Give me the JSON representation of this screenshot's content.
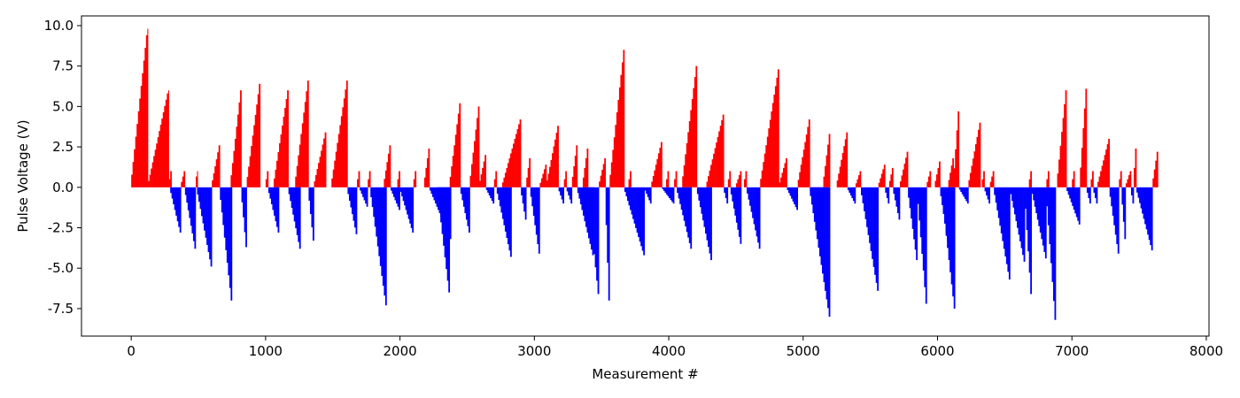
{
  "chart_data": {
    "type": "bar",
    "title": "",
    "xlabel": "Measurement #",
    "ylabel": "Pulse Voltage (V)",
    "xlim": [
      -370,
      8020
    ],
    "ylim": [
      -9.2,
      10.6
    ],
    "xticks": [
      0,
      1000,
      2000,
      3000,
      4000,
      5000,
      6000,
      7000,
      8000
    ],
    "yticks": [
      -7.5,
      -5.0,
      -2.5,
      0.0,
      2.5,
      5.0,
      7.5,
      10.0
    ],
    "grid": false,
    "legend": "none",
    "colors": {
      "positive": "#ff0000",
      "negative": "#0000ff"
    },
    "series": [
      {
        "sign": "positive",
        "ramps": [
          [
            0,
            125,
            9.8
          ],
          [
            125,
            280,
            6.0
          ],
          [
            280,
            300,
            1.0
          ],
          [
            370,
            400,
            1.0
          ],
          [
            480,
            495,
            1.0
          ],
          [
            600,
            660,
            2.6
          ],
          [
            740,
            820,
            6.0
          ],
          [
            860,
            960,
            6.4
          ],
          [
            1000,
            1020,
            1.0
          ],
          [
            1060,
            1170,
            6.0
          ],
          [
            1220,
            1320,
            6.6
          ],
          [
            1360,
            1450,
            3.4
          ],
          [
            1490,
            1610,
            6.6
          ],
          [
            1680,
            1700,
            1.0
          ],
          [
            1760,
            1780,
            1.0
          ],
          [
            1880,
            1930,
            2.6
          ],
          [
            1980,
            2000,
            1.0
          ],
          [
            2100,
            2120,
            1.0
          ],
          [
            2180,
            2220,
            2.4
          ],
          [
            2370,
            2450,
            5.2
          ],
          [
            2520,
            2590,
            5.0
          ],
          [
            2590,
            2640,
            2.0
          ],
          [
            2700,
            2720,
            1.0
          ],
          [
            2760,
            2900,
            4.2
          ],
          [
            2940,
            2970,
            1.8
          ],
          [
            3040,
            3090,
            1.4
          ],
          [
            3090,
            3180,
            3.8
          ],
          [
            3220,
            3240,
            1.0
          ],
          [
            3280,
            3320,
            2.6
          ],
          [
            3360,
            3400,
            2.4
          ],
          [
            3480,
            3530,
            1.8
          ],
          [
            3560,
            3670,
            8.5
          ],
          [
            3700,
            3720,
            1.0
          ],
          [
            3870,
            3950,
            2.8
          ],
          [
            3980,
            4000,
            1.0
          ],
          [
            4040,
            4060,
            1.0
          ],
          [
            4100,
            4210,
            7.5
          ],
          [
            4280,
            4410,
            4.5
          ],
          [
            4440,
            4460,
            1.0
          ],
          [
            4500,
            4540,
            1.0
          ],
          [
            4560,
            4580,
            1.0
          ],
          [
            4680,
            4820,
            7.3
          ],
          [
            4820,
            4880,
            1.8
          ],
          [
            4960,
            5050,
            4.2
          ],
          [
            5150,
            5200,
            3.3
          ],
          [
            5250,
            5330,
            3.4
          ],
          [
            5390,
            5430,
            1.0
          ],
          [
            5560,
            5610,
            1.4
          ],
          [
            5640,
            5670,
            1.2
          ],
          [
            5720,
            5780,
            2.2
          ],
          [
            5920,
            5950,
            1.0
          ],
          [
            5980,
            6020,
            1.6
          ],
          [
            6080,
            6120,
            1.8
          ],
          [
            6120,
            6160,
            4.7
          ],
          [
            6230,
            6320,
            4.0
          ],
          [
            6330,
            6350,
            1.0
          ],
          [
            6390,
            6420,
            1.0
          ],
          [
            6680,
            6700,
            1.0
          ],
          [
            6810,
            6830,
            1.0
          ],
          [
            6890,
            6960,
            6.0
          ],
          [
            7000,
            7020,
            1.0
          ],
          [
            7060,
            7110,
            6.1
          ],
          [
            7140,
            7160,
            1.0
          ],
          [
            7190,
            7280,
            3.0
          ],
          [
            7350,
            7370,
            1.0
          ],
          [
            7400,
            7440,
            1.0
          ],
          [
            7460,
            7480,
            2.4
          ],
          [
            7600,
            7640,
            2.2
          ]
        ]
      },
      {
        "sign": "negative",
        "ramps": [
          [
            290,
            370,
            -2.8
          ],
          [
            400,
            480,
            -3.8
          ],
          [
            490,
            600,
            -4.9
          ],
          [
            660,
            750,
            -7.0
          ],
          [
            820,
            860,
            -3.7
          ],
          [
            1020,
            1100,
            -2.8
          ],
          [
            1170,
            1260,
            -3.8
          ],
          [
            1320,
            1360,
            -3.3
          ],
          [
            1610,
            1680,
            -2.9
          ],
          [
            1700,
            1760,
            -1.2
          ],
          [
            1780,
            1900,
            -7.3
          ],
          [
            1930,
            2000,
            -1.4
          ],
          [
            2000,
            2100,
            -2.8
          ],
          [
            2220,
            2380,
            -3.2
          ],
          [
            2280,
            2370,
            -6.5
          ],
          [
            2450,
            2520,
            -2.8
          ],
          [
            2640,
            2700,
            -1.0
          ],
          [
            2720,
            2830,
            -4.3
          ],
          [
            2900,
            2940,
            -2.0
          ],
          [
            2970,
            3040,
            -4.1
          ],
          [
            3180,
            3220,
            -1.0
          ],
          [
            3240,
            3280,
            -1.0
          ],
          [
            3320,
            3440,
            -4.2
          ],
          [
            3400,
            3480,
            -6.6
          ],
          [
            3530,
            3560,
            -7.0
          ],
          [
            3670,
            3820,
            -4.2
          ],
          [
            3820,
            3870,
            -1.0
          ],
          [
            3950,
            4040,
            -1.0
          ],
          [
            4060,
            4170,
            -3.8
          ],
          [
            4410,
            4440,
            -1.0
          ],
          [
            4210,
            4320,
            -4.5
          ],
          [
            4460,
            4540,
            -3.5
          ],
          [
            4580,
            4680,
            -3.8
          ],
          [
            4880,
            4960,
            -1.4
          ],
          [
            5050,
            5150,
            -2.5
          ],
          [
            5050,
            5200,
            -8.0
          ],
          [
            5330,
            5390,
            -1.0
          ],
          [
            5430,
            5560,
            -6.4
          ],
          [
            5610,
            5640,
            -1.0
          ],
          [
            5670,
            5720,
            -2.0
          ],
          [
            5780,
            5850,
            -4.5
          ],
          [
            5850,
            5920,
            -7.2
          ],
          [
            6020,
            6080,
            -3.3
          ],
          [
            6030,
            6130,
            -7.5
          ],
          [
            6160,
            6230,
            -1.0
          ],
          [
            6350,
            6390,
            -1.0
          ],
          [
            6420,
            6540,
            -5.7
          ],
          [
            6540,
            6650,
            -4.6
          ],
          [
            6650,
            6700,
            -6.6
          ],
          [
            6700,
            6810,
            -4.4
          ],
          [
            6810,
            6880,
            -8.2
          ],
          [
            6960,
            7060,
            -2.3
          ],
          [
            7110,
            7140,
            -1.0
          ],
          [
            7160,
            7190,
            -1.0
          ],
          [
            7280,
            7350,
            -4.1
          ],
          [
            7370,
            7400,
            -3.2
          ],
          [
            7440,
            7460,
            -1.0
          ],
          [
            7480,
            7600,
            -3.9
          ]
        ]
      }
    ]
  }
}
